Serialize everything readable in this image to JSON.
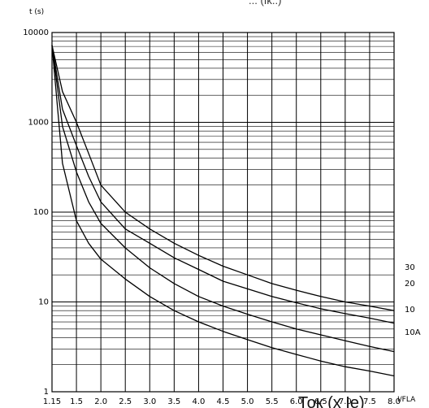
{
  "top_text_fragment": "... (Ik..)",
  "chart_data": {
    "type": "line",
    "y_scale": "log",
    "ylim": [
      1,
      10000
    ],
    "xlim": [
      1.15,
      8.0
    ],
    "ylabel": "t (s)",
    "x_unit_label": "I/FLA",
    "xlabel": "Ток (x Ie)",
    "y_ticks": [
      {
        "value": 10000,
        "label": "10000"
      },
      {
        "value": 1000,
        "label": "1000"
      },
      {
        "value": 100,
        "label": "100"
      },
      {
        "value": 10,
        "label": "10"
      },
      {
        "value": 1,
        "label": "1"
      }
    ],
    "x_ticks": [
      {
        "value": 1.15,
        "label": "1.15"
      },
      {
        "value": 1.5,
        "label": "1.5"
      },
      {
        "value": 2.0,
        "label": "2.0"
      },
      {
        "value": 2.5,
        "label": "2.5"
      },
      {
        "value": 3.0,
        "label": "3.0"
      },
      {
        "value": 3.5,
        "label": "3.5"
      },
      {
        "value": 4.0,
        "label": "4.0"
      },
      {
        "value": 4.5,
        "label": "4.5"
      },
      {
        "value": 5.0,
        "label": "5.0"
      },
      {
        "value": 5.5,
        "label": "5.5"
      },
      {
        "value": 6.0,
        "label": "6.0"
      },
      {
        "value": 6.5,
        "label": "6.5"
      },
      {
        "value": 7.0,
        "label": "7.0"
      },
      {
        "value": 7.5,
        "label": "7.5"
      },
      {
        "value": 8.0,
        "label": "8.0"
      }
    ],
    "grid": true,
    "series": [
      {
        "name": "30",
        "points": [
          [
            1.15,
            7200
          ],
          [
            1.3,
            2200
          ],
          [
            1.5,
            1000
          ],
          [
            1.75,
            450
          ],
          [
            2.0,
            200
          ],
          [
            2.5,
            100
          ],
          [
            3.0,
            65
          ],
          [
            3.5,
            45
          ],
          [
            4.0,
            33
          ],
          [
            4.5,
            25
          ],
          [
            5.0,
            20
          ],
          [
            5.5,
            16
          ],
          [
            6.0,
            13.5
          ],
          [
            6.5,
            11.5
          ],
          [
            7.0,
            10
          ],
          [
            7.5,
            9
          ],
          [
            8.0,
            8
          ]
        ]
      },
      {
        "name": "20",
        "points": [
          [
            1.15,
            7200
          ],
          [
            1.3,
            1400
          ],
          [
            1.5,
            550
          ],
          [
            1.75,
            250
          ],
          [
            2.0,
            130
          ],
          [
            2.5,
            65
          ],
          [
            3.0,
            45
          ],
          [
            3.5,
            31
          ],
          [
            4.0,
            23
          ],
          [
            4.5,
            17
          ],
          [
            5.0,
            14
          ],
          [
            5.5,
            11.5
          ],
          [
            6.0,
            9.8
          ],
          [
            6.5,
            8.4
          ],
          [
            7.0,
            7.4
          ],
          [
            7.5,
            6.6
          ],
          [
            8.0,
            5.8
          ]
        ]
      },
      {
        "name": "10",
        "points": [
          [
            1.15,
            7200
          ],
          [
            1.3,
            900
          ],
          [
            1.5,
            280
          ],
          [
            1.75,
            130
          ],
          [
            2.0,
            75
          ],
          [
            2.5,
            40
          ],
          [
            3.0,
            24
          ],
          [
            3.5,
            16
          ],
          [
            4.0,
            11.5
          ],
          [
            4.5,
            9
          ],
          [
            5.0,
            7.3
          ],
          [
            5.5,
            6
          ],
          [
            6.0,
            5
          ],
          [
            6.5,
            4.3
          ],
          [
            7.0,
            3.7
          ],
          [
            7.5,
            3.2
          ],
          [
            8.0,
            2.8
          ]
        ]
      },
      {
        "name": "10A",
        "points": [
          [
            1.15,
            7200
          ],
          [
            1.3,
            350
          ],
          [
            1.5,
            80
          ],
          [
            1.75,
            45
          ],
          [
            2.0,
            30
          ],
          [
            2.5,
            18
          ],
          [
            3.0,
            11.5
          ],
          [
            3.5,
            8
          ],
          [
            4.0,
            6
          ],
          [
            4.5,
            4.7
          ],
          [
            5.0,
            3.8
          ],
          [
            5.5,
            3.1
          ],
          [
            6.0,
            2.6
          ],
          [
            6.5,
            2.2
          ],
          [
            7.0,
            1.9
          ],
          [
            7.5,
            1.7
          ],
          [
            8.0,
            1.5
          ]
        ]
      }
    ]
  }
}
